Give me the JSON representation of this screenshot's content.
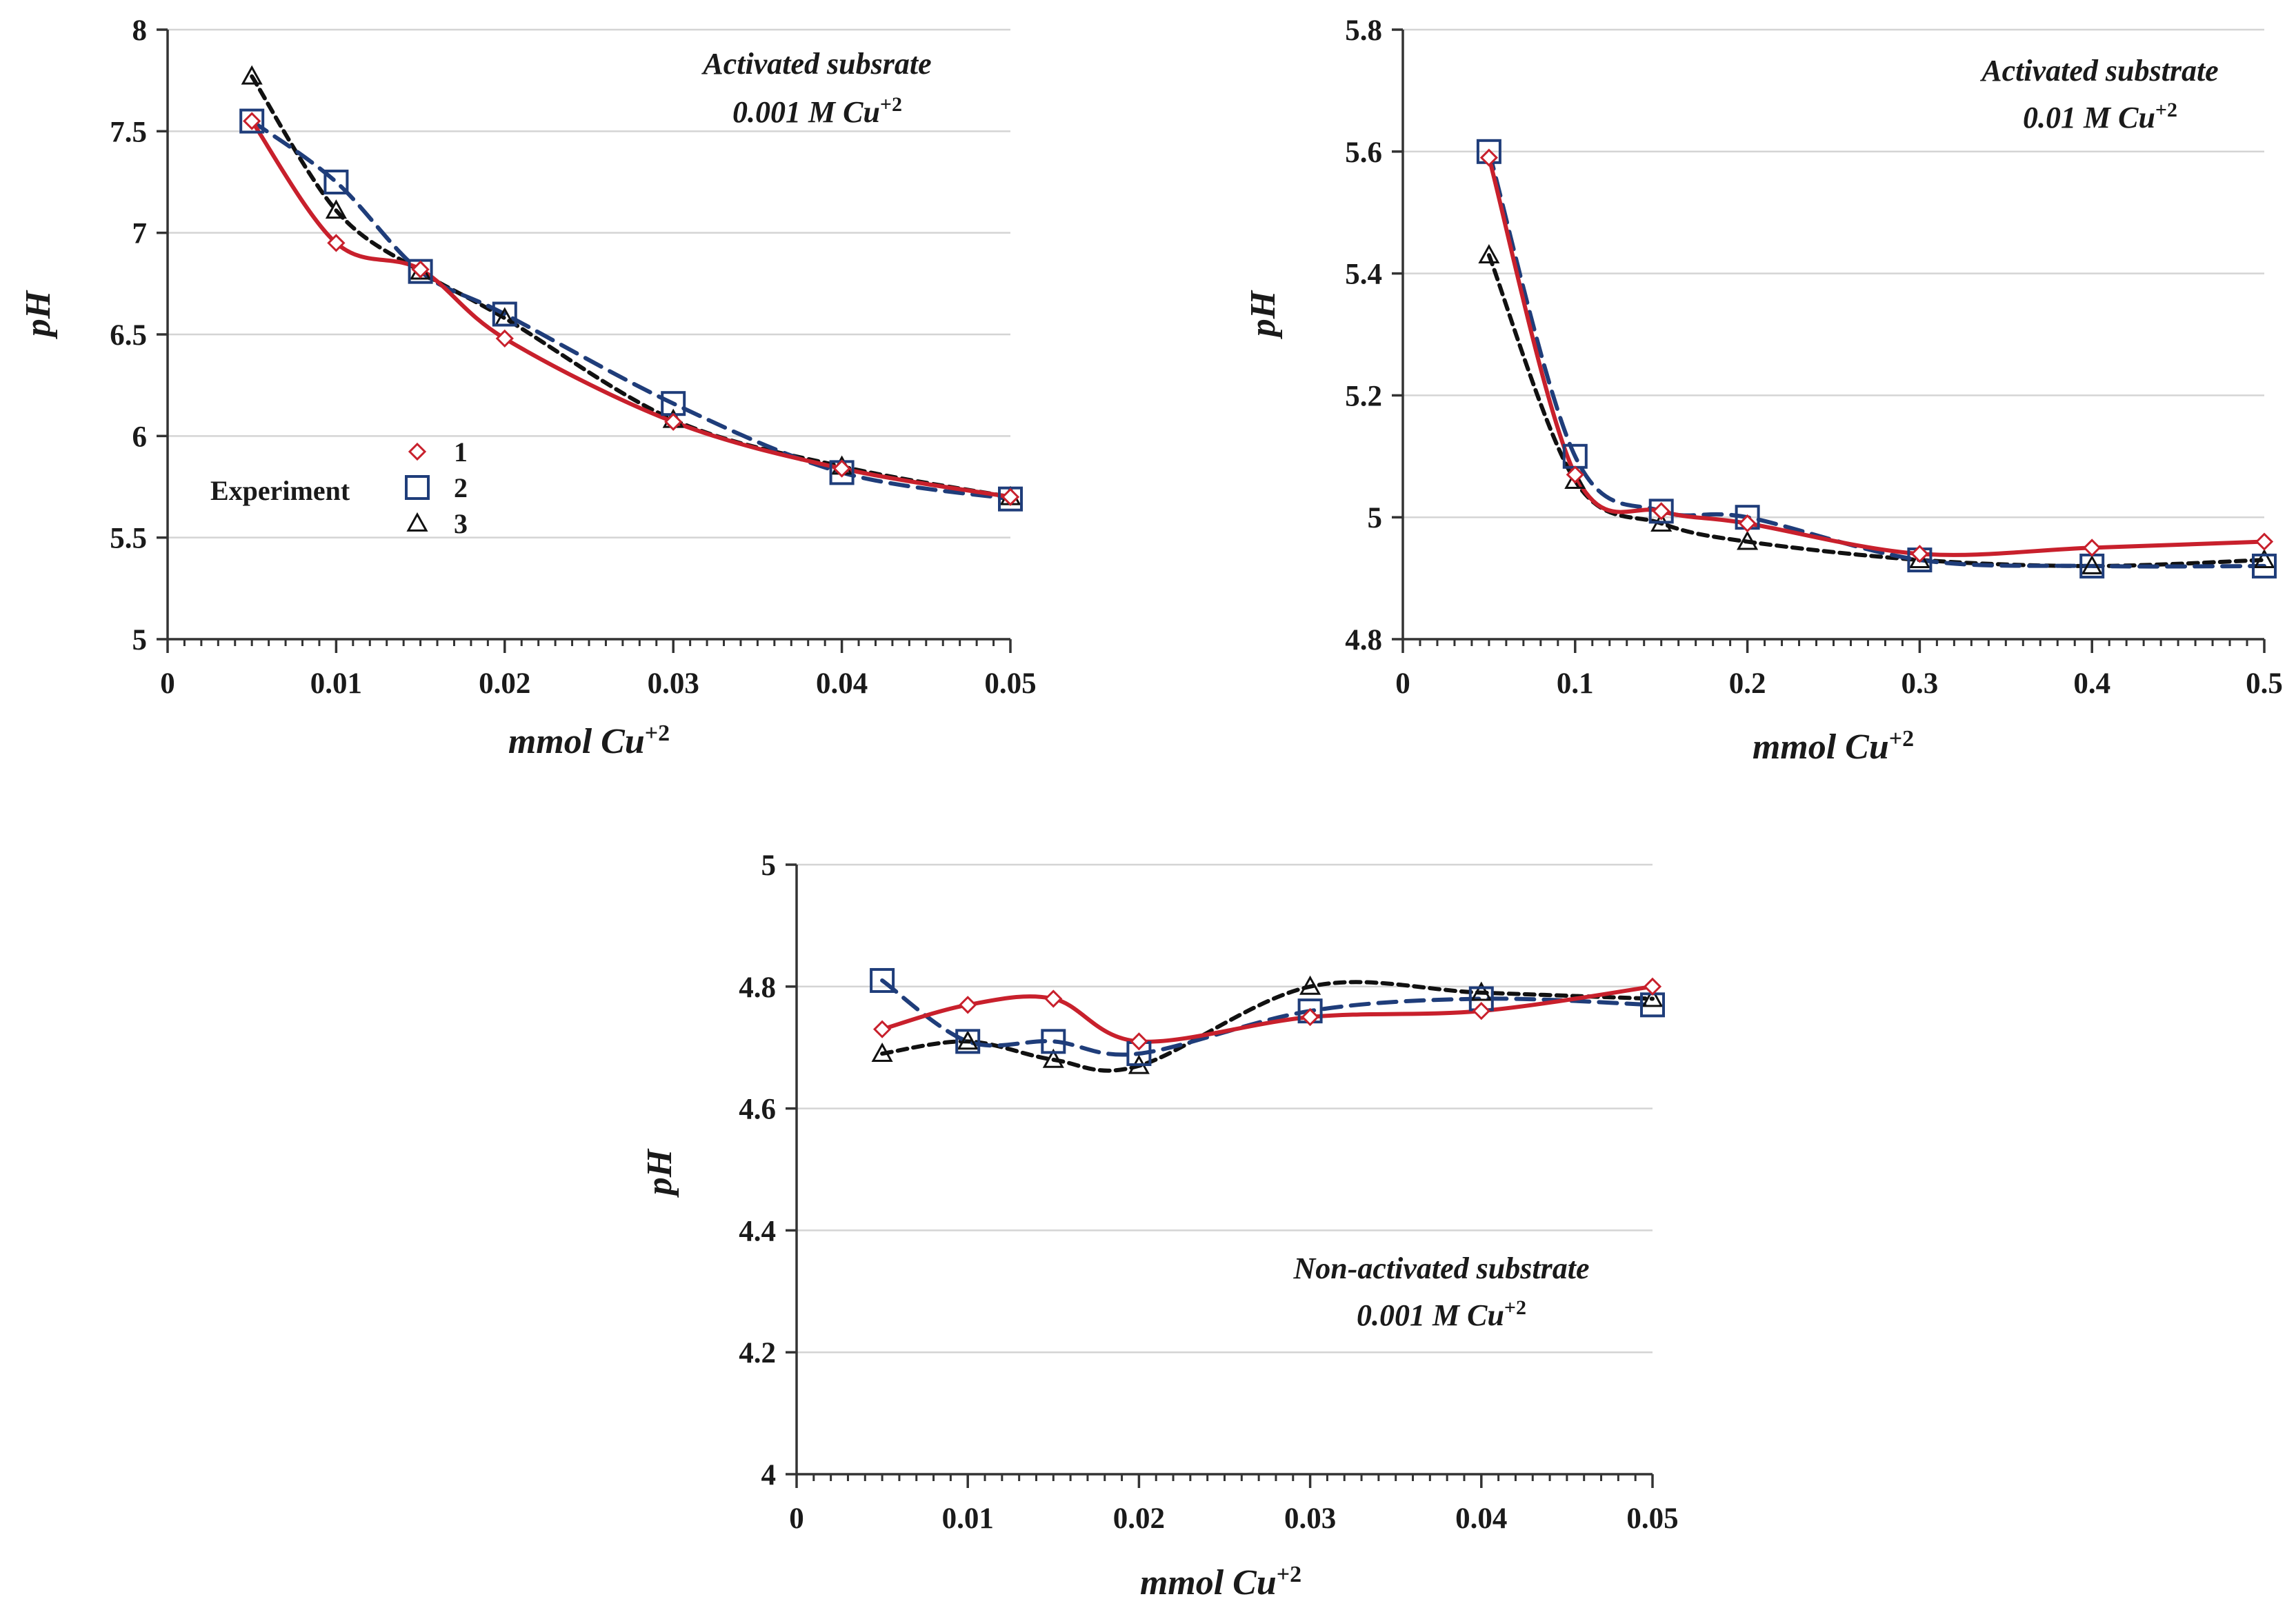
{
  "figure": {
    "legend": {
      "title": "Experiment",
      "entries": [
        "1",
        "2",
        "3"
      ]
    },
    "series_colors": {
      "1": "#c8202c",
      "2": "#1f3d7a",
      "3": "#111111"
    }
  },
  "chart_data": [
    {
      "type": "line",
      "title": "",
      "annotation": [
        "Activated subsrate",
        "0.001 M Cu+2"
      ],
      "xlabel": "mmol Cu+2",
      "ylabel": "pH",
      "xlim": [
        0,
        0.05
      ],
      "ylim": [
        5,
        8
      ],
      "x_ticks": [
        0,
        0.01,
        0.02,
        0.03,
        0.04,
        0.05
      ],
      "x_tick_labels": [
        "0",
        "0.01",
        "0.02",
        "0.03",
        "0.04",
        "0.05"
      ],
      "y_ticks": [
        5,
        5.5,
        6,
        6.5,
        7,
        7.5,
        8
      ],
      "y_tick_labels": [
        "5",
        "5.5",
        "6",
        "6.5",
        "7",
        "7.5",
        "8"
      ],
      "grid": "horizontal",
      "legend": {
        "title": "Experiment",
        "entries": [
          "1",
          "2",
          "3"
        ]
      },
      "x": [
        0.005,
        0.01,
        0.015,
        0.02,
        0.03,
        0.04,
        0.05
      ],
      "series": [
        {
          "name": "1",
          "values": [
            7.55,
            6.95,
            6.82,
            6.48,
            6.07,
            5.84,
            5.7
          ]
        },
        {
          "name": "2",
          "values": [
            7.55,
            7.25,
            6.81,
            6.6,
            6.16,
            5.82,
            5.69
          ]
        },
        {
          "name": "3",
          "values": [
            7.77,
            7.11,
            6.81,
            6.58,
            6.08,
            5.85,
            5.7
          ]
        }
      ]
    },
    {
      "type": "line",
      "title": "",
      "annotation": [
        "Activated substrate",
        "0.01 M Cu+2"
      ],
      "xlabel": "mmol Cu+2",
      "ylabel": "pH",
      "xlim": [
        0,
        0.5
      ],
      "ylim": [
        4.8,
        5.8
      ],
      "x_ticks": [
        0,
        0.1,
        0.2,
        0.3,
        0.4,
        0.5
      ],
      "x_tick_labels": [
        "0",
        "0.1",
        "0.2",
        "0.3",
        "0.4",
        "0.5"
      ],
      "y_ticks": [
        4.8,
        5,
        5.2,
        5.4,
        5.6,
        5.8
      ],
      "y_tick_labels": [
        "4.8",
        "5",
        "5.2",
        "5.4",
        "5.6",
        "5.8"
      ],
      "grid": "horizontal",
      "x": [
        0.05,
        0.1,
        0.15,
        0.2,
        0.3,
        0.4,
        0.5
      ],
      "series": [
        {
          "name": "1",
          "values": [
            5.59,
            5.07,
            5.01,
            4.99,
            4.94,
            4.95,
            4.96
          ]
        },
        {
          "name": "2",
          "values": [
            5.6,
            5.1,
            5.01,
            5.0,
            4.93,
            4.92,
            4.92
          ]
        },
        {
          "name": "3",
          "values": [
            5.43,
            5.06,
            4.99,
            4.96,
            4.93,
            4.92,
            4.93
          ]
        }
      ]
    },
    {
      "type": "line",
      "title": "",
      "annotation": [
        "Non-activated substrate",
        "0.001  M Cu+2"
      ],
      "xlabel": "mmol Cu+2",
      "ylabel": "pH",
      "xlim": [
        0,
        0.05
      ],
      "ylim": [
        4,
        5
      ],
      "x_ticks": [
        0,
        0.01,
        0.02,
        0.03,
        0.04,
        0.05
      ],
      "x_tick_labels": [
        "0",
        "0.01",
        "0.02",
        "0.03",
        "0.04",
        "0.05"
      ],
      "y_ticks": [
        4,
        4.2,
        4.4,
        4.6,
        4.8,
        5
      ],
      "y_tick_labels": [
        "4",
        "4.2",
        "4.4",
        "4.6",
        "4.8",
        "5"
      ],
      "grid": "horizontal",
      "x": [
        0.005,
        0.01,
        0.015,
        0.02,
        0.03,
        0.04,
        0.05
      ],
      "series": [
        {
          "name": "1",
          "values": [
            4.73,
            4.77,
            4.78,
            4.71,
            4.75,
            4.76,
            4.8
          ]
        },
        {
          "name": "2",
          "values": [
            4.81,
            4.71,
            4.71,
            4.69,
            4.76,
            4.78,
            4.77
          ]
        },
        {
          "name": "3",
          "values": [
            4.69,
            4.71,
            4.68,
            4.67,
            4.8,
            4.79,
            4.78
          ]
        }
      ]
    }
  ]
}
